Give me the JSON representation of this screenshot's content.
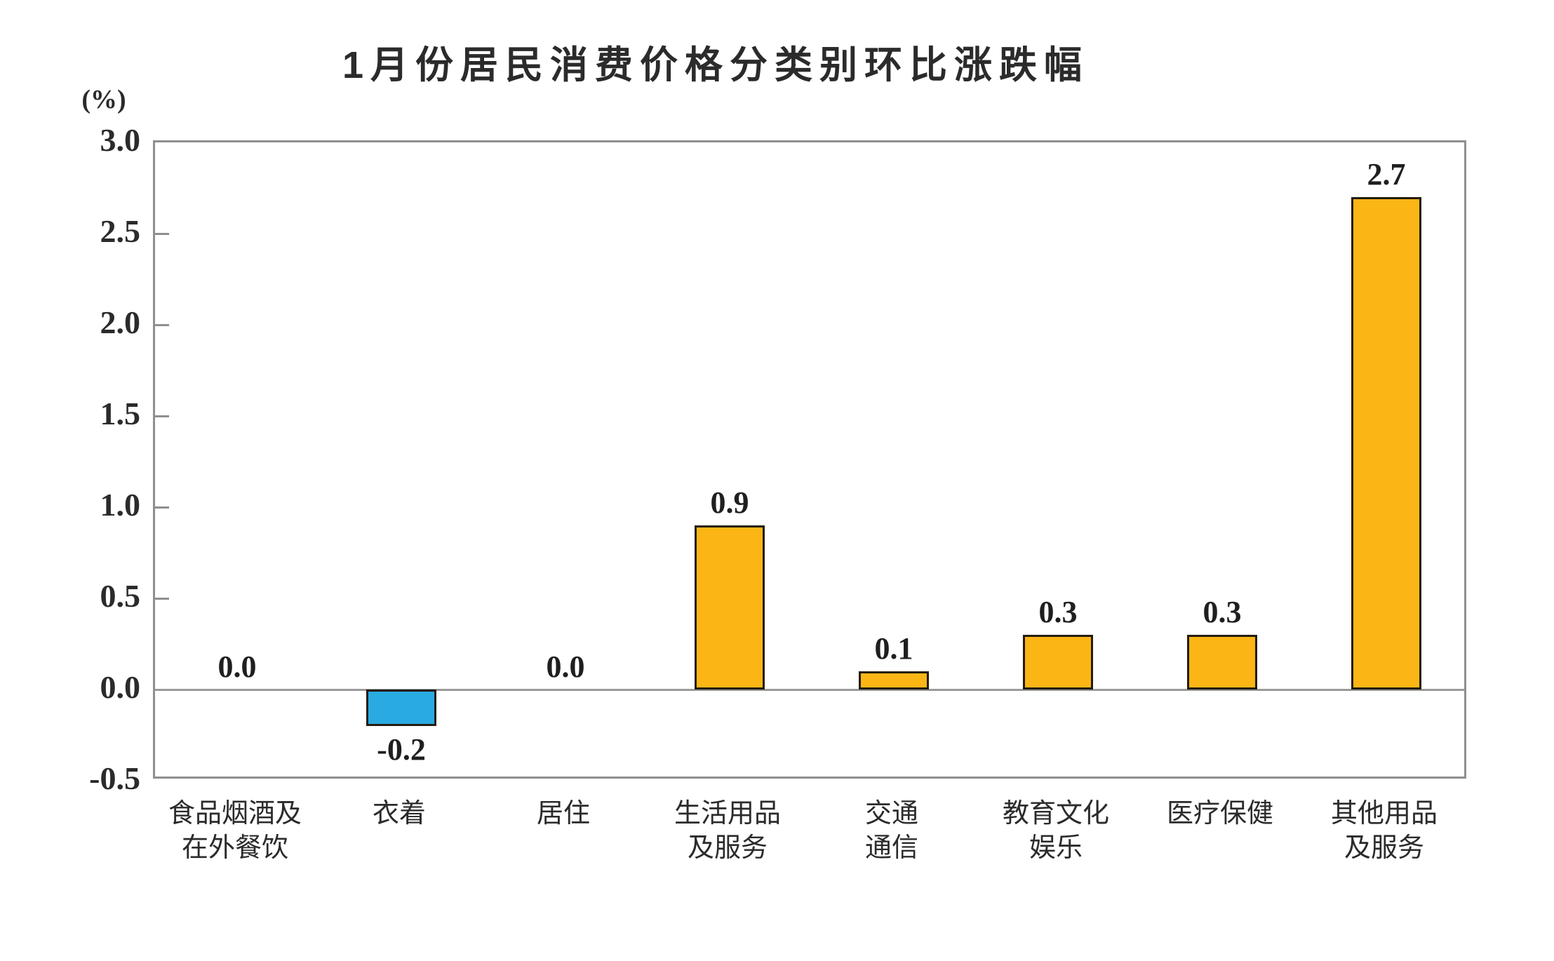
{
  "chart_data": {
    "type": "bar",
    "title": "1月份居民消费价格分类别环比涨跌幅",
    "ylabel": "(%)",
    "categories": [
      "食品烟酒及在外餐饮",
      "衣着",
      "居住",
      "生活用品及服务",
      "交通通信",
      "教育文化娱乐",
      "医疗保健",
      "其他用品及服务"
    ],
    "category_display_lines": [
      "食品烟酒及\n在外餐饮",
      "衣着",
      "居住",
      "生活用品\n及服务",
      "交通\n通信",
      "教育文化\n娱乐",
      "医疗保健",
      "其他用品\n及服务"
    ],
    "values": [
      0.0,
      -0.2,
      0.0,
      0.9,
      0.1,
      0.3,
      0.3,
      2.7
    ],
    "value_labels": [
      "0.0",
      "-0.2",
      "0.0",
      "0.9",
      "0.1",
      "0.3",
      "0.3",
      "2.7"
    ],
    "ylim": [
      -0.5,
      3.0
    ],
    "ytick_labels": [
      "3.0",
      "2.5",
      "2.0",
      "1.5",
      "1.0",
      "0.5",
      "0.0",
      "-0.5"
    ],
    "ytick_values": [
      3.0,
      2.5,
      2.0,
      1.5,
      1.0,
      0.5,
      0.0,
      -0.5
    ],
    "grid": false,
    "legend": "none",
    "colors": {
      "positive_bar": "#FBB615",
      "negative_bar": "#29ABE2",
      "bar_border": "#241C10",
      "axis": "#8F8F8F",
      "text": "#2B2B2B"
    }
  }
}
